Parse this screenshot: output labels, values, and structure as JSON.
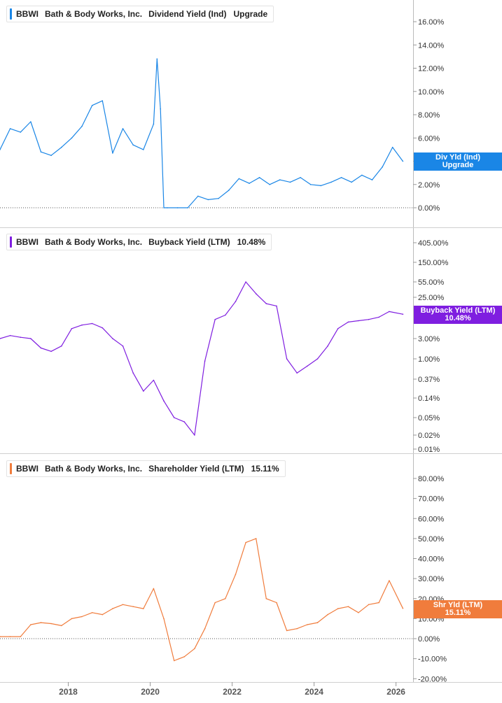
{
  "chart_data": [
    {
      "type": "line",
      "ticker": "BBWI",
      "company": "Bath & Body Works, Inc.",
      "metric": "Dividend Yield (Ind)",
      "value_label": "Upgrade",
      "badge": [
        "Div Yld (Ind)",
        "Upgrade"
      ],
      "color": "#1a86e6",
      "scale": "linear",
      "ylim": [
        0,
        16
      ],
      "yticks": [
        0,
        2,
        4,
        6,
        8,
        10,
        12,
        14,
        16
      ],
      "ytick_labels": [
        "0.00%",
        "2.00%",
        "4.00%",
        "6.00%",
        "8.00%",
        "10.00%",
        "12.00%",
        "14.00%",
        "16.00%"
      ],
      "zero_line": true,
      "series": [
        {
          "x": [
            "2016-05",
            "2016-08",
            "2016-11",
            "2017-02",
            "2017-05",
            "2017-08",
            "2017-11",
            "2018-02",
            "2018-05",
            "2018-08",
            "2018-11",
            "2019-02",
            "2019-05",
            "2019-08",
            "2019-11",
            "2020-02",
            "2020-03",
            "2020-04",
            "2020-05",
            "2020-06",
            "2020-09",
            "2020-12",
            "2021-03",
            "2021-06",
            "2021-09",
            "2021-12",
            "2022-03",
            "2022-06",
            "2022-09",
            "2022-12",
            "2023-03",
            "2023-06",
            "2023-09",
            "2023-12",
            "2024-03",
            "2024-06",
            "2024-09",
            "2024-12",
            "2025-03",
            "2025-06",
            "2025-09",
            "2025-12",
            "2026-03"
          ],
          "y": [
            5.0,
            6.8,
            6.5,
            7.4,
            4.8,
            4.5,
            5.2,
            6.0,
            7.0,
            8.8,
            9.2,
            4.7,
            6.8,
            5.4,
            5.0,
            7.2,
            12.8,
            8.5,
            0.0,
            0.0,
            0.0,
            0.0,
            1.0,
            0.7,
            0.8,
            1.5,
            2.5,
            2.1,
            2.6,
            2.0,
            2.4,
            2.2,
            2.6,
            2.0,
            1.9,
            2.2,
            2.6,
            2.2,
            2.8,
            2.4,
            3.5,
            5.2,
            4.0
          ]
        }
      ]
    },
    {
      "type": "line",
      "ticker": "BBWI",
      "company": "Bath & Body Works, Inc.",
      "metric": "Buyback Yield (LTM)",
      "value_label": "10.48%",
      "badge": [
        "Buyback Yield (LTM)",
        "10.48%"
      ],
      "color": "#7f1ee0",
      "scale": "log",
      "ylim": [
        0.01,
        600
      ],
      "yticks": [
        0.01,
        0.02,
        0.05,
        0.14,
        0.37,
        1.0,
        3.0,
        25,
        55,
        150,
        405
      ],
      "ytick_labels": [
        "0.01%",
        "0.02%",
        "0.05%",
        "0.14%",
        "0.37%",
        "1.00%",
        "3.00%",
        "25.00%",
        "55.00%",
        "150.00%",
        "405.00%"
      ],
      "zero_line": false,
      "series": [
        {
          "x": [
            "2016-05",
            "2016-08",
            "2016-11",
            "2017-02",
            "2017-05",
            "2017-08",
            "2017-11",
            "2018-02",
            "2018-05",
            "2018-08",
            "2018-11",
            "2019-02",
            "2019-05",
            "2019-08",
            "2019-11",
            "2020-02",
            "2020-05",
            "2020-08",
            "2020-11",
            "2021-02",
            "2021-05",
            "2021-08",
            "2021-11",
            "2022-02",
            "2022-05",
            "2022-08",
            "2022-11",
            "2023-02",
            "2023-05",
            "2023-08",
            "2023-11",
            "2024-02",
            "2024-05",
            "2024-08",
            "2024-11",
            "2025-02",
            "2025-05",
            "2025-08",
            "2025-11",
            "2026-03"
          ],
          "y": [
            3.0,
            3.5,
            3.2,
            3.0,
            1.8,
            1.5,
            2.0,
            5.0,
            6.0,
            6.5,
            5.2,
            3.0,
            2.0,
            0.5,
            0.2,
            0.35,
            0.12,
            0.05,
            0.04,
            0.02,
            0.9,
            8.0,
            10.0,
            20.0,
            55.0,
            30.0,
            18.0,
            16.0,
            1.0,
            0.5,
            0.7,
            1.0,
            2.0,
            5.0,
            7.0,
            7.5,
            8.0,
            9.0,
            12.0,
            10.48
          ]
        }
      ]
    },
    {
      "type": "line",
      "ticker": "BBWI",
      "company": "Bath & Body Works, Inc.",
      "metric": "Shareholder Yield (LTM)",
      "value_label": "15.11%",
      "badge": [
        "Shr Yld (LTM)",
        "15.11%"
      ],
      "color": "#f07c3c",
      "scale": "linear",
      "ylim": [
        -20,
        80
      ],
      "yticks": [
        -20,
        -10,
        0,
        10,
        20,
        30,
        40,
        50,
        60,
        70,
        80
      ],
      "ytick_labels": [
        "-20.00%",
        "-10.00%",
        "0.00%",
        "10.00%",
        "20.00%",
        "30.00%",
        "40.00%",
        "50.00%",
        "60.00%",
        "70.00%",
        "80.00%"
      ],
      "zero_line": true,
      "series": [
        {
          "x": [
            "2016-05",
            "2016-08",
            "2016-11",
            "2017-02",
            "2017-05",
            "2017-08",
            "2017-11",
            "2018-02",
            "2018-05",
            "2018-08",
            "2018-11",
            "2019-02",
            "2019-05",
            "2019-08",
            "2019-11",
            "2020-02",
            "2020-05",
            "2020-08",
            "2020-11",
            "2021-02",
            "2021-05",
            "2021-08",
            "2021-11",
            "2022-02",
            "2022-05",
            "2022-08",
            "2022-11",
            "2023-02",
            "2023-05",
            "2023-08",
            "2023-11",
            "2024-02",
            "2024-05",
            "2024-08",
            "2024-11",
            "2025-02",
            "2025-05",
            "2025-08",
            "2025-11",
            "2026-03"
          ],
          "y": [
            1.0,
            1.0,
            1.0,
            7.0,
            8.0,
            7.5,
            6.5,
            10.0,
            11.0,
            13.0,
            12.0,
            15.0,
            17.0,
            16.0,
            15.0,
            25.0,
            10.0,
            -11.0,
            -9.0,
            -5.0,
            5.0,
            18.0,
            20.0,
            32.0,
            48.0,
            50.0,
            20.0,
            18.0,
            4.0,
            5.0,
            7.0,
            8.0,
            12.0,
            15.0,
            16.0,
            13.0,
            17.0,
            18.0,
            29.0,
            15.11
          ]
        }
      ]
    }
  ],
  "x_axis": {
    "ticks": [
      "2018",
      "2020",
      "2022",
      "2024",
      "2026"
    ],
    "range": [
      "2016-05",
      "2026-06"
    ]
  }
}
